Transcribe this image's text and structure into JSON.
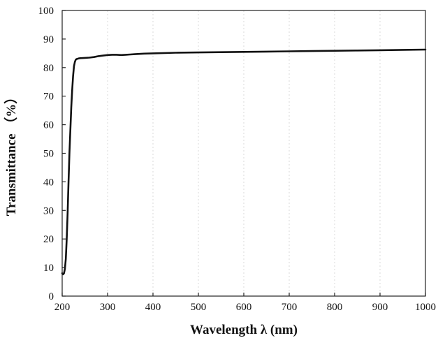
{
  "chart_data": {
    "type": "line",
    "title": "",
    "xlabel": "Wavelength λ (nm)",
    "ylabel": "Transmittance （%）",
    "xlim": [
      200,
      1000
    ],
    "ylim": [
      0,
      100
    ],
    "x_ticks": [
      200,
      300,
      400,
      500,
      600,
      700,
      800,
      900,
      1000
    ],
    "y_ticks": [
      0,
      10,
      20,
      30,
      40,
      50,
      60,
      70,
      80,
      90,
      100
    ],
    "x_tick_labels": [
      "200",
      "300",
      "400",
      "500",
      "600",
      "700",
      "800",
      "900",
      "1000"
    ],
    "y_tick_labels": [
      "0",
      "10",
      "20",
      "30",
      "40",
      "50",
      "60",
      "70",
      "80",
      "90",
      "100"
    ],
    "grid": "vertical dotted",
    "series": [
      {
        "color": "#111111",
        "x": [
          200,
          202,
          204,
          206,
          208,
          210,
          212,
          214,
          216,
          218,
          220,
          222,
          224,
          226,
          228,
          230,
          232,
          234,
          236,
          240,
          250,
          260,
          270,
          280,
          290,
          300,
          310,
          320,
          330,
          340,
          350,
          360,
          380,
          400,
          450,
          500,
          550,
          600,
          650,
          700,
          750,
          800,
          850,
          900,
          950,
          1000
        ],
        "y": [
          8,
          7.6,
          8,
          9.5,
          13,
          20,
          29,
          40,
          50,
          58,
          66,
          72,
          77,
          80.5,
          82,
          82.8,
          83,
          83.1,
          83.2,
          83.3,
          83.4,
          83.5,
          83.7,
          84,
          84.2,
          84.4,
          84.5,
          84.5,
          84.4,
          84.5,
          84.6,
          84.7,
          84.9,
          85,
          85.2,
          85.3,
          85.4,
          85.5,
          85.6,
          85.7,
          85.8,
          85.9,
          86,
          86.1,
          86.2,
          86.3
        ]
      }
    ]
  }
}
